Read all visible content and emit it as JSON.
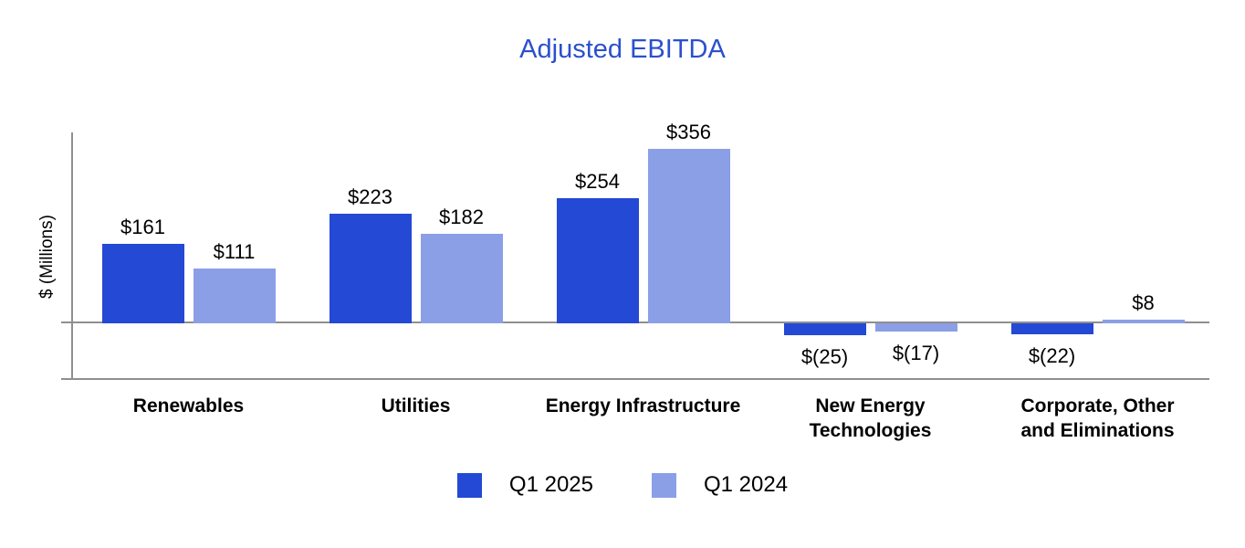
{
  "chart_data": {
    "type": "bar",
    "title": "Adjusted EBITDA",
    "ylabel": "$ (Millions)",
    "categories": [
      {
        "label": "Renewables",
        "lines": [
          "Renewables"
        ]
      },
      {
        "label": "Utilities",
        "lines": [
          "Utilities"
        ]
      },
      {
        "label": "Energy Infrastructure",
        "lines": [
          "Energy Infrastructure"
        ]
      },
      {
        "label": "New Energy Technologies",
        "lines": [
          "New Energy",
          "Technologies"
        ]
      },
      {
        "label": "Corporate, Other and Eliminations",
        "lines": [
          "Corporate, Other",
          "and Eliminations"
        ]
      }
    ],
    "series": [
      {
        "name": "Q1 2025",
        "color": "#2449d4",
        "values": [
          161,
          223,
          254,
          -25,
          -22
        ],
        "labels": [
          "$161",
          "$223",
          "$254",
          "$(25)",
          "$(22)"
        ]
      },
      {
        "name": "Q1 2024",
        "color": "#8b9fe6",
        "values": [
          111,
          182,
          356,
          -17,
          8
        ],
        "labels": [
          "$111",
          "$182",
          "$356",
          "$(17)",
          "$8"
        ]
      }
    ],
    "ylim": [
      -115,
      385
    ],
    "grid": false,
    "legend_position": "bottom"
  },
  "colors": {
    "title": "#2b50cc",
    "axis": "#8f8f8f",
    "value_label": "#000000"
  }
}
